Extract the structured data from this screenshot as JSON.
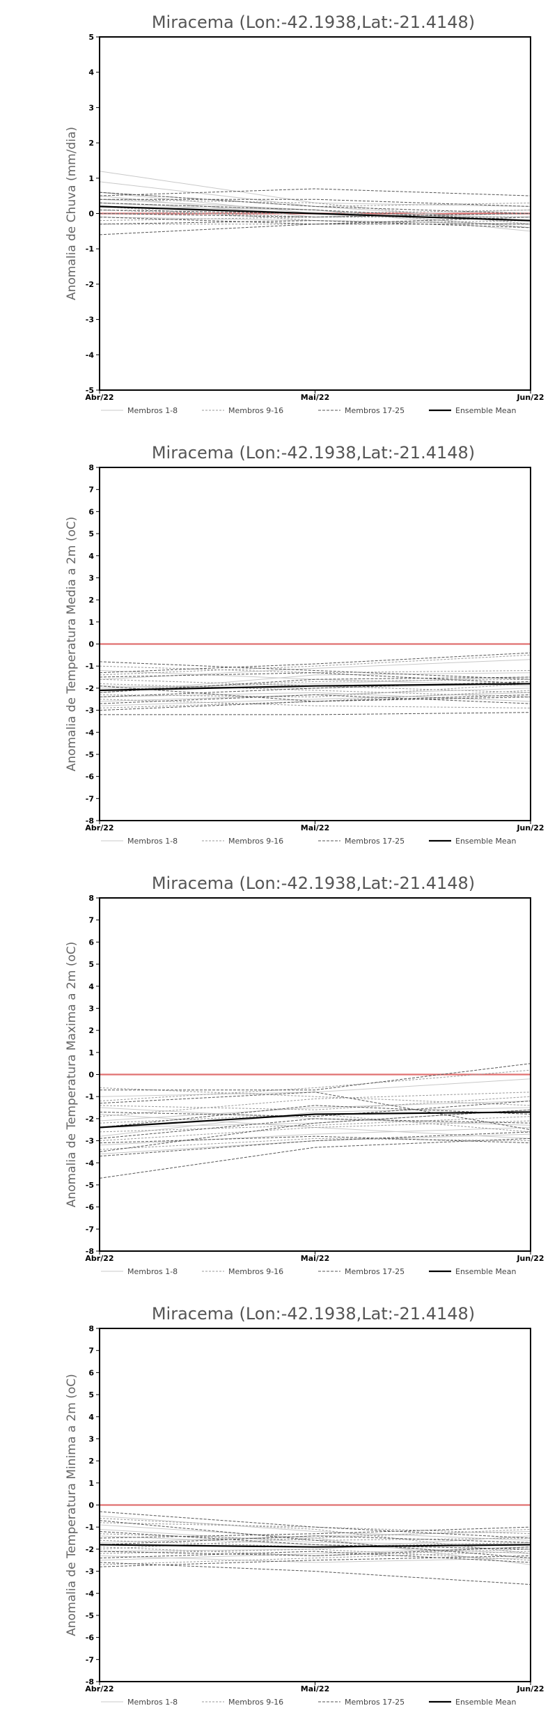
{
  "chart_data": [
    {
      "type": "line",
      "title": "Miracema (Lon:-42.1938,Lat:-21.4148)",
      "ylabel": "Anomalia de Chuva (mm/dia)",
      "categories": [
        "Abr/22",
        "Mai/22",
        "Jun/22"
      ],
      "ylim": [
        -5,
        5
      ],
      "yticks": [
        -5,
        -4,
        -3,
        -2,
        -1,
        0,
        1,
        2,
        3,
        4,
        5
      ],
      "reference_line": 0,
      "legend": [
        "Membros 1-8",
        "Membros 9-16",
        "Membros 17-25",
        "Ensemble Mean"
      ],
      "colors": {
        "ref": "#e07070",
        "g1": "#c8c8c8",
        "g2": "#9a9a9a",
        "g3": "#555555",
        "mean": "#000000"
      },
      "series": [
        {
          "group": 1,
          "values": [
            1.2,
            0.3,
            0.2
          ]
        },
        {
          "group": 1,
          "values": [
            0.9,
            0.2,
            -0.2
          ]
        },
        {
          "group": 1,
          "values": [
            0.4,
            0.1,
            -0.4
          ]
        },
        {
          "group": 1,
          "values": [
            0.6,
            0.0,
            -0.1
          ]
        },
        {
          "group": 1,
          "values": [
            0.2,
            0.1,
            -0.5
          ]
        },
        {
          "group": 1,
          "values": [
            -0.1,
            -0.2,
            -0.3
          ]
        },
        {
          "group": 1,
          "values": [
            0.5,
            -0.1,
            0.1
          ]
        },
        {
          "group": 1,
          "values": [
            0.3,
            0.0,
            -0.2
          ]
        },
        {
          "group": 2,
          "values": [
            0.6,
            0.2,
            0.3
          ]
        },
        {
          "group": 2,
          "values": [
            0.1,
            -0.1,
            -0.1
          ]
        },
        {
          "group": 2,
          "values": [
            0.4,
            0.3,
            -0.3
          ]
        },
        {
          "group": 2,
          "values": [
            -0.2,
            -0.1,
            0.0
          ]
        },
        {
          "group": 2,
          "values": [
            0.3,
            0.1,
            -0.4
          ]
        },
        {
          "group": 2,
          "values": [
            0.0,
            0.0,
            0.1
          ]
        },
        {
          "group": 2,
          "values": [
            -0.3,
            -0.3,
            -0.2
          ]
        },
        {
          "group": 2,
          "values": [
            0.2,
            -0.2,
            -0.3
          ]
        },
        {
          "group": 3,
          "values": [
            0.5,
            0.7,
            0.5
          ]
        },
        {
          "group": 3,
          "values": [
            0.4,
            0.4,
            0.2
          ]
        },
        {
          "group": 3,
          "values": [
            0.1,
            0.0,
            -0.2
          ]
        },
        {
          "group": 3,
          "values": [
            -0.3,
            -0.2,
            -0.4
          ]
        },
        {
          "group": 3,
          "values": [
            -0.6,
            -0.3,
            -0.3
          ]
        },
        {
          "group": 3,
          "values": [
            0.0,
            -0.1,
            0.0
          ]
        },
        {
          "group": 3,
          "values": [
            -0.1,
            -0.3,
            -0.1
          ]
        },
        {
          "group": 3,
          "values": [
            0.3,
            0.1,
            -0.2
          ]
        },
        {
          "group": 3,
          "values": [
            0.6,
            0.2,
            0.0
          ]
        },
        {
          "group": 0,
          "values": [
            0.2,
            0.0,
            -0.2
          ]
        }
      ]
    },
    {
      "type": "line",
      "title": "Miracema (Lon:-42.1938,Lat:-21.4148)",
      "ylabel": "Anomalia de Temperatura Media a 2m (oC)",
      "categories": [
        "Abr/22",
        "Mai/22",
        "Jun/22"
      ],
      "ylim": [
        -8,
        8
      ],
      "yticks": [
        -8,
        -7,
        -6,
        -5,
        -4,
        -3,
        -2,
        -1,
        0,
        1,
        2,
        3,
        4,
        5,
        6,
        7,
        8
      ],
      "reference_line": 0,
      "legend": [
        "Membros 1-8",
        "Membros 9-16",
        "Membros 17-25",
        "Ensemble Mean"
      ],
      "colors": {
        "ref": "#e07070",
        "g1": "#c8c8c8",
        "g2": "#9a9a9a",
        "g3": "#555555",
        "mean": "#000000"
      },
      "series": [
        {
          "group": 1,
          "values": [
            -1.2,
            -1.6,
            -1.9
          ]
        },
        {
          "group": 1,
          "values": [
            -2.0,
            -1.8,
            -1.5
          ]
        },
        {
          "group": 1,
          "values": [
            -2.4,
            -2.2,
            -2.6
          ]
        },
        {
          "group": 1,
          "values": [
            -1.6,
            -1.1,
            -0.7
          ]
        },
        {
          "group": 1,
          "values": [
            -2.8,
            -2.5,
            -2.2
          ]
        },
        {
          "group": 1,
          "values": [
            -1.9,
            -2.0,
            -1.8
          ]
        },
        {
          "group": 1,
          "values": [
            -2.2,
            -1.4,
            -1.3
          ]
        },
        {
          "group": 1,
          "values": [
            -2.6,
            -2.3,
            -2.0
          ]
        },
        {
          "group": 2,
          "values": [
            -1.0,
            -1.3,
            -1.2
          ]
        },
        {
          "group": 2,
          "values": [
            -1.8,
            -2.1,
            -2.4
          ]
        },
        {
          "group": 2,
          "values": [
            -2.5,
            -2.8,
            -2.9
          ]
        },
        {
          "group": 2,
          "values": [
            -1.4,
            -1.0,
            -0.5
          ]
        },
        {
          "group": 2,
          "values": [
            -2.9,
            -2.6,
            -2.1
          ]
        },
        {
          "group": 2,
          "values": [
            -2.1,
            -1.7,
            -1.6
          ]
        },
        {
          "group": 2,
          "values": [
            -1.6,
            -1.9,
            -2.2
          ]
        },
        {
          "group": 2,
          "values": [
            -2.3,
            -2.4,
            -1.8
          ]
        },
        {
          "group": 3,
          "values": [
            -0.8,
            -1.2,
            -1.6
          ]
        },
        {
          "group": 3,
          "values": [
            -3.2,
            -3.2,
            -3.1
          ]
        },
        {
          "group": 3,
          "values": [
            -3.0,
            -2.6,
            -2.3
          ]
        },
        {
          "group": 3,
          "values": [
            -1.3,
            -0.9,
            -0.4
          ]
        },
        {
          "group": 3,
          "values": [
            -2.7,
            -2.3,
            -2.7
          ]
        },
        {
          "group": 3,
          "values": [
            -1.5,
            -1.3,
            -1.8
          ]
        },
        {
          "group": 3,
          "values": [
            -2.4,
            -2.0,
            -1.7
          ]
        },
        {
          "group": 3,
          "values": [
            -1.9,
            -2.6,
            -2.4
          ]
        },
        {
          "group": 3,
          "values": [
            -2.2,
            -1.6,
            -1.5
          ]
        },
        {
          "group": 0,
          "values": [
            -2.1,
            -1.9,
            -1.8
          ]
        }
      ]
    },
    {
      "type": "line",
      "title": "Miracema (Lon:-42.1938,Lat:-21.4148)",
      "ylabel": "Anomalia de Temperatura Maxima a 2m (oC)",
      "categories": [
        "Abr/22",
        "Mai/22",
        "Jun/22"
      ],
      "ylim": [
        -8,
        8
      ],
      "yticks": [
        -8,
        -7,
        -6,
        -5,
        -4,
        -3,
        -2,
        -1,
        0,
        1,
        2,
        3,
        4,
        5,
        6,
        7,
        8
      ],
      "reference_line": 0,
      "legend": [
        "Membros 1-8",
        "Membros 9-16",
        "Membros 17-25",
        "Ensemble Mean"
      ],
      "colors": {
        "ref": "#e07070",
        "g1": "#c8c8c8",
        "g2": "#9a9a9a",
        "g3": "#555555",
        "mean": "#000000"
      },
      "series": [
        {
          "group": 1,
          "values": [
            -1.5,
            -2.0,
            -2.3
          ]
        },
        {
          "group": 1,
          "values": [
            -2.4,
            -2.2,
            -1.6
          ]
        },
        {
          "group": 1,
          "values": [
            -3.2,
            -2.7,
            -2.4
          ]
        },
        {
          "group": 1,
          "values": [
            -1.0,
            -0.8,
            -0.2
          ]
        },
        {
          "group": 1,
          "values": [
            -2.8,
            -1.7,
            -1.5
          ]
        },
        {
          "group": 1,
          "values": [
            -3.6,
            -3.0,
            -2.7
          ]
        },
        {
          "group": 1,
          "values": [
            -1.8,
            -2.4,
            -2.9
          ]
        },
        {
          "group": 1,
          "values": [
            -2.1,
            -1.5,
            -1.2
          ]
        },
        {
          "group": 2,
          "values": [
            -0.6,
            -1.0,
            -1.4
          ]
        },
        {
          "group": 2,
          "values": [
            -1.2,
            -0.6,
            0.2
          ]
        },
        {
          "group": 2,
          "values": [
            -3.4,
            -2.9,
            -3.0
          ]
        },
        {
          "group": 2,
          "values": [
            -2.6,
            -2.3,
            -1.9
          ]
        },
        {
          "group": 2,
          "values": [
            -1.9,
            -1.1,
            -0.8
          ]
        },
        {
          "group": 2,
          "values": [
            -3.0,
            -2.4,
            -2.1
          ]
        },
        {
          "group": 2,
          "values": [
            -2.2,
            -1.8,
            -2.6
          ]
        },
        {
          "group": 2,
          "values": [
            -1.4,
            -1.6,
            -1.0
          ]
        },
        {
          "group": 3,
          "values": [
            -4.7,
            -3.3,
            -2.9
          ]
        },
        {
          "group": 3,
          "values": [
            -0.7,
            -0.7,
            0.5
          ]
        },
        {
          "group": 3,
          "values": [
            -3.7,
            -3.0,
            -2.6
          ]
        },
        {
          "group": 3,
          "values": [
            -1.3,
            -0.8,
            -2.5
          ]
        },
        {
          "group": 3,
          "values": [
            -3.5,
            -2.2,
            -1.6
          ]
        },
        {
          "group": 3,
          "values": [
            -2.4,
            -1.4,
            -1.8
          ]
        },
        {
          "group": 3,
          "values": [
            -3.1,
            -2.8,
            -3.1
          ]
        },
        {
          "group": 3,
          "values": [
            -1.7,
            -1.9,
            -1.2
          ]
        },
        {
          "group": 3,
          "values": [
            -2.9,
            -2.0,
            -2.2
          ]
        },
        {
          "group": 0,
          "values": [
            -2.4,
            -1.8,
            -1.7
          ]
        }
      ]
    },
    {
      "type": "line",
      "title": "Miracema (Lon:-42.1938,Lat:-21.4148)",
      "ylabel": "Anomalia de Temperatura Minima a 2m (oC)",
      "categories": [
        "Abr/22",
        "Mai/22",
        "Jun/22"
      ],
      "ylim": [
        -8,
        8
      ],
      "yticks": [
        -8,
        -7,
        -6,
        -5,
        -4,
        -3,
        -2,
        -1,
        0,
        1,
        2,
        3,
        4,
        5,
        6,
        7,
        8
      ],
      "reference_line": 0,
      "legend": [
        "Membros 1-8",
        "Membros 9-16",
        "Membros 17-25",
        "Ensemble Mean"
      ],
      "colors": {
        "ref": "#e07070",
        "g1": "#c8c8c8",
        "g2": "#9a9a9a",
        "g3": "#555555",
        "mean": "#000000"
      },
      "series": [
        {
          "group": 1,
          "values": [
            -0.5,
            -1.2,
            -1.6
          ]
        },
        {
          "group": 1,
          "values": [
            -1.4,
            -1.8,
            -2.2
          ]
        },
        {
          "group": 1,
          "values": [
            -2.1,
            -2.0,
            -1.4
          ]
        },
        {
          "group": 1,
          "values": [
            -0.9,
            -1.5,
            -2.7
          ]
        },
        {
          "group": 1,
          "values": [
            -2.5,
            -2.2,
            -1.9
          ]
        },
        {
          "group": 1,
          "values": [
            -1.7,
            -1.4,
            -1.2
          ]
        },
        {
          "group": 1,
          "values": [
            -2.3,
            -2.6,
            -2.4
          ]
        },
        {
          "group": 1,
          "values": [
            -1.1,
            -1.7,
            -1.8
          ]
        },
        {
          "group": 2,
          "values": [
            -0.8,
            -1.0,
            -1.3
          ]
        },
        {
          "group": 2,
          "values": [
            -1.9,
            -2.3,
            -2.0
          ]
        },
        {
          "group": 2,
          "values": [
            -2.7,
            -2.4,
            -2.1
          ]
        },
        {
          "group": 2,
          "values": [
            -1.3,
            -1.6,
            -1.5
          ]
        },
        {
          "group": 2,
          "values": [
            -2.2,
            -2.0,
            -2.5
          ]
        },
        {
          "group": 2,
          "values": [
            -1.6,
            -1.9,
            -1.7
          ]
        },
        {
          "group": 2,
          "values": [
            -0.6,
            -1.1,
            -2.2
          ]
        },
        {
          "group": 2,
          "values": [
            -2.0,
            -1.5,
            -1.1
          ]
        },
        {
          "group": 3,
          "values": [
            -0.3,
            -1.0,
            -1.5
          ]
        },
        {
          "group": 3,
          "values": [
            -2.6,
            -3.0,
            -3.6
          ]
        },
        {
          "group": 3,
          "values": [
            -1.5,
            -1.3,
            -1.0
          ]
        },
        {
          "group": 3,
          "values": [
            -2.4,
            -2.1,
            -2.6
          ]
        },
        {
          "group": 3,
          "values": [
            -1.2,
            -1.8,
            -2.0
          ]
        },
        {
          "group": 3,
          "values": [
            -2.8,
            -2.5,
            -2.3
          ]
        },
        {
          "group": 3,
          "values": [
            -1.8,
            -1.4,
            -1.7
          ]
        },
        {
          "group": 3,
          "values": [
            -0.7,
            -1.6,
            -2.4
          ]
        },
        {
          "group": 3,
          "values": [
            -2.1,
            -2.3,
            -1.9
          ]
        },
        {
          "group": 0,
          "values": [
            -1.8,
            -1.9,
            -1.8
          ]
        }
      ]
    }
  ]
}
